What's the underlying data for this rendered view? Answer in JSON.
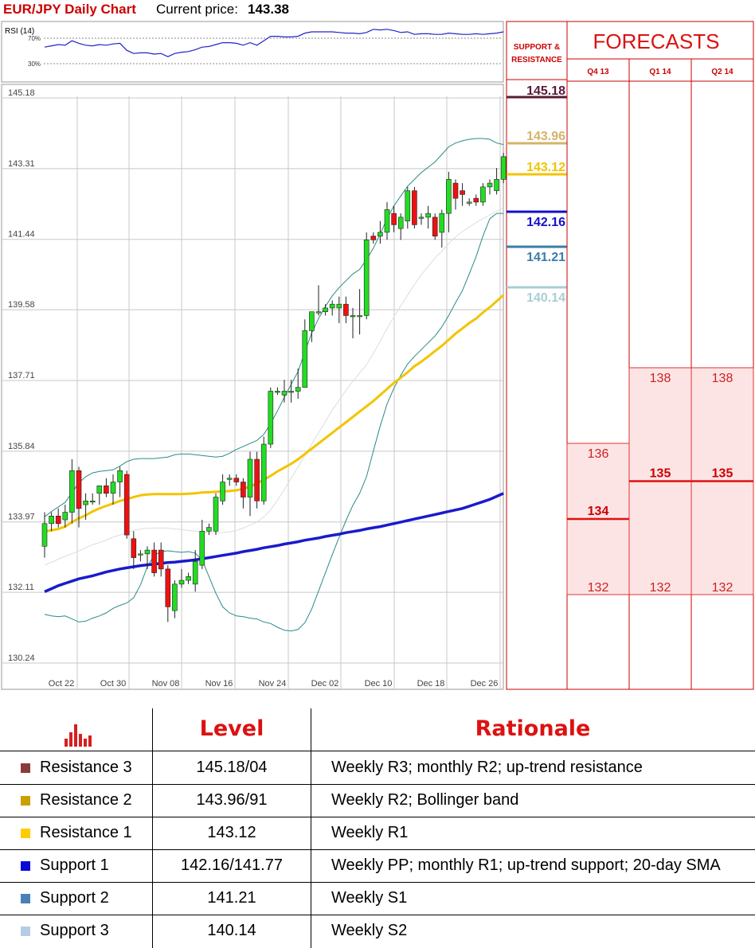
{
  "header": {
    "title": "EUR/JPY Daily Chart",
    "price_label": "Current price:",
    "price_value": "143.38"
  },
  "chart_data": {
    "type": "candlestick",
    "rsi_label": "RSI (14)",
    "rsi_levels": [
      "70%",
      "30%"
    ],
    "y_ticks": [
      "145.18",
      "143.31",
      "141.44",
      "139.58",
      "137.71",
      "135.84",
      "133.97",
      "132.11",
      "130.24"
    ],
    "ylim": [
      130.24,
      145.18
    ],
    "x_ticks": [
      "Oct 22",
      "Oct 30",
      "Nov 08",
      "Nov 16",
      "Nov 24",
      "Dec 02",
      "Dec 10",
      "Dec 18",
      "Dec 26"
    ],
    "grid": true,
    "candles": [
      {
        "o": 133.2,
        "h": 134.1,
        "l": 132.9,
        "c": 133.8
      },
      {
        "o": 133.8,
        "h": 134.1,
        "l": 133.6,
        "c": 134.0
      },
      {
        "o": 134.0,
        "h": 134.2,
        "l": 133.7,
        "c": 133.8
      },
      {
        "o": 133.9,
        "h": 134.3,
        "l": 133.7,
        "c": 134.1
      },
      {
        "o": 134.1,
        "h": 135.5,
        "l": 133.8,
        "c": 135.2
      },
      {
        "o": 135.2,
        "h": 135.3,
        "l": 133.7,
        "c": 134.2
      },
      {
        "o": 134.3,
        "h": 134.6,
        "l": 133.9,
        "c": 134.4
      },
      {
        "o": 134.4,
        "h": 134.6,
        "l": 134.3,
        "c": 134.4
      },
      {
        "o": 134.6,
        "h": 134.8,
        "l": 134.3,
        "c": 134.8
      },
      {
        "o": 134.8,
        "h": 135.0,
        "l": 134.5,
        "c": 134.6
      },
      {
        "o": 134.6,
        "h": 135.1,
        "l": 134.3,
        "c": 134.9
      },
      {
        "o": 134.9,
        "h": 135.3,
        "l": 134.5,
        "c": 135.2
      },
      {
        "o": 135.1,
        "h": 135.2,
        "l": 133.4,
        "c": 133.5
      },
      {
        "o": 133.4,
        "h": 133.6,
        "l": 132.6,
        "c": 132.9
      },
      {
        "o": 133.0,
        "h": 133.1,
        "l": 132.8,
        "c": 133.0
      },
      {
        "o": 133.0,
        "h": 133.2,
        "l": 132.6,
        "c": 133.1
      },
      {
        "o": 133.1,
        "h": 133.3,
        "l": 132.4,
        "c": 132.5
      },
      {
        "o": 133.1,
        "h": 133.3,
        "l": 132.4,
        "c": 132.6
      },
      {
        "o": 132.6,
        "h": 132.7,
        "l": 131.2,
        "c": 131.6
      },
      {
        "o": 131.5,
        "h": 132.3,
        "l": 131.3,
        "c": 132.2
      },
      {
        "o": 132.2,
        "h": 132.6,
        "l": 132.1,
        "c": 132.3
      },
      {
        "o": 132.3,
        "h": 132.5,
        "l": 132.2,
        "c": 132.4
      },
      {
        "o": 132.2,
        "h": 133.1,
        "l": 132.0,
        "c": 132.8
      },
      {
        "o": 132.7,
        "h": 133.9,
        "l": 132.6,
        "c": 133.6
      },
      {
        "o": 133.6,
        "h": 133.8,
        "l": 133.5,
        "c": 133.7
      },
      {
        "o": 133.6,
        "h": 134.6,
        "l": 133.5,
        "c": 134.5
      },
      {
        "o": 134.4,
        "h": 135.1,
        "l": 134.3,
        "c": 134.9
      },
      {
        "o": 135.0,
        "h": 135.1,
        "l": 134.8,
        "c": 135.0
      },
      {
        "o": 135.0,
        "h": 135.1,
        "l": 134.8,
        "c": 134.9
      },
      {
        "o": 134.9,
        "h": 135.0,
        "l": 134.2,
        "c": 134.5
      },
      {
        "o": 134.5,
        "h": 135.7,
        "l": 134.0,
        "c": 135.5
      },
      {
        "o": 135.5,
        "h": 135.7,
        "l": 134.2,
        "c": 134.4
      },
      {
        "o": 134.4,
        "h": 136.1,
        "l": 134.3,
        "c": 135.9
      },
      {
        "o": 135.9,
        "h": 137.4,
        "l": 135.8,
        "c": 137.3
      },
      {
        "o": 137.3,
        "h": 137.4,
        "l": 137.2,
        "c": 137.3
      },
      {
        "o": 137.2,
        "h": 137.6,
        "l": 137.0,
        "c": 137.3
      },
      {
        "o": 137.3,
        "h": 137.6,
        "l": 137.0,
        "c": 137.3
      },
      {
        "o": 137.3,
        "h": 137.9,
        "l": 137.1,
        "c": 137.4
      },
      {
        "o": 137.4,
        "h": 139.2,
        "l": 137.4,
        "c": 138.9
      },
      {
        "o": 138.9,
        "h": 139.4,
        "l": 138.6,
        "c": 139.4
      },
      {
        "o": 139.4,
        "h": 140.1,
        "l": 139.3,
        "c": 139.4
      },
      {
        "o": 139.4,
        "h": 139.6,
        "l": 139.3,
        "c": 139.5
      },
      {
        "o": 139.5,
        "h": 139.7,
        "l": 139.3,
        "c": 139.6
      },
      {
        "o": 139.5,
        "h": 139.8,
        "l": 139.1,
        "c": 139.6
      },
      {
        "o": 139.6,
        "h": 139.8,
        "l": 139.1,
        "c": 139.3
      },
      {
        "o": 139.3,
        "h": 139.5,
        "l": 138.7,
        "c": 139.3
      },
      {
        "o": 139.3,
        "h": 140.0,
        "l": 138.8,
        "c": 139.3
      },
      {
        "o": 139.3,
        "h": 141.5,
        "l": 139.2,
        "c": 141.3
      },
      {
        "o": 141.4,
        "h": 141.5,
        "l": 141.2,
        "c": 141.3
      },
      {
        "o": 141.4,
        "h": 141.8,
        "l": 141.2,
        "c": 141.5
      },
      {
        "o": 141.5,
        "h": 142.3,
        "l": 141.3,
        "c": 142.1
      },
      {
        "o": 142.0,
        "h": 142.2,
        "l": 141.5,
        "c": 141.7
      },
      {
        "o": 141.6,
        "h": 142.0,
        "l": 141.3,
        "c": 141.9
      },
      {
        "o": 141.8,
        "h": 142.7,
        "l": 141.6,
        "c": 142.6
      },
      {
        "o": 142.6,
        "h": 142.7,
        "l": 141.6,
        "c": 141.7
      },
      {
        "o": 141.9,
        "h": 142.0,
        "l": 141.7,
        "c": 141.9
      },
      {
        "o": 141.9,
        "h": 142.2,
        "l": 141.6,
        "c": 142.0
      },
      {
        "o": 141.9,
        "h": 142.0,
        "l": 141.3,
        "c": 141.4
      },
      {
        "o": 141.5,
        "h": 142.1,
        "l": 141.1,
        "c": 142.0
      },
      {
        "o": 142.0,
        "h": 143.1,
        "l": 141.5,
        "c": 142.9
      },
      {
        "o": 142.8,
        "h": 142.9,
        "l": 142.1,
        "c": 142.4
      },
      {
        "o": 142.6,
        "h": 142.8,
        "l": 142.2,
        "c": 142.5
      },
      {
        "o": 142.3,
        "h": 142.4,
        "l": 142.2,
        "c": 142.3
      },
      {
        "o": 142.4,
        "h": 142.5,
        "l": 142.2,
        "c": 142.3
      },
      {
        "o": 142.3,
        "h": 142.8,
        "l": 142.2,
        "c": 142.7
      },
      {
        "o": 142.7,
        "h": 142.9,
        "l": 142.5,
        "c": 142.8
      },
      {
        "o": 142.6,
        "h": 143.2,
        "l": 142.5,
        "c": 142.9
      },
      {
        "o": 142.9,
        "h": 143.6,
        "l": 142.8,
        "c": 143.5
      }
    ],
    "sma100": [
      132.0,
      132.08,
      132.16,
      132.22,
      132.28,
      132.34,
      132.38,
      132.42,
      132.47,
      132.52,
      132.56,
      132.6,
      132.63,
      132.66,
      132.69,
      132.71,
      132.73,
      132.75,
      132.77,
      132.78,
      132.8,
      132.82,
      132.84,
      132.87,
      132.9,
      132.93,
      132.96,
      132.99,
      133.02,
      133.06,
      133.09,
      133.12,
      133.16,
      133.19,
      133.22,
      133.26,
      133.29,
      133.32,
      133.36,
      133.39,
      133.42,
      133.46,
      133.49,
      133.52,
      133.56,
      133.59,
      133.62,
      133.66,
      133.69,
      133.72,
      133.76,
      133.8,
      133.84,
      133.88,
      133.92,
      133.96,
      134.0,
      134.04,
      134.08,
      134.12,
      134.16,
      134.2,
      134.26,
      134.32,
      134.38,
      134.44,
      134.52,
      134.6
    ],
    "sma50": [
      133.6,
      133.62,
      133.66,
      133.72,
      133.84,
      133.94,
      134.02,
      134.12,
      134.2,
      134.27,
      134.33,
      134.4,
      134.45,
      134.5,
      134.55,
      134.57,
      134.58,
      134.58,
      134.58,
      134.58,
      134.58,
      134.59,
      134.6,
      134.62,
      134.63,
      134.64,
      134.65,
      134.66,
      134.68,
      134.72,
      134.78,
      134.86,
      134.96,
      135.06,
      135.18,
      135.28,
      135.38,
      135.5,
      135.64,
      135.78,
      135.92,
      136.06,
      136.2,
      136.34,
      136.48,
      136.62,
      136.76,
      136.9,
      137.04,
      137.2,
      137.36,
      137.52,
      137.66,
      137.8,
      137.96,
      138.08,
      138.22,
      138.36,
      138.5,
      138.66,
      138.82,
      138.96,
      139.1,
      139.22,
      139.38,
      139.52,
      139.68,
      139.84
    ],
    "bb_upper": [
      133.98,
      134.12,
      134.24,
      134.36,
      134.62,
      134.88,
      135.04,
      135.14,
      135.18,
      135.2,
      135.22,
      135.32,
      135.44,
      135.5,
      135.52,
      135.52,
      135.52,
      135.54,
      135.56,
      135.62,
      135.64,
      135.64,
      135.62,
      135.6,
      135.58,
      135.56,
      135.58,
      135.66,
      135.76,
      135.84,
      135.92,
      136.0,
      136.16,
      136.44,
      136.78,
      137.14,
      137.48,
      137.82,
      138.34,
      138.84,
      139.22,
      139.54,
      139.82,
      140.04,
      140.22,
      140.4,
      140.52,
      140.78,
      141.08,
      141.46,
      141.86,
      142.2,
      142.46,
      142.72,
      142.9,
      143.08,
      143.22,
      143.36,
      143.56,
      143.76,
      143.86,
      143.92,
      143.96,
      143.98,
      143.98,
      143.96,
      143.86,
      143.82
    ],
    "bb_lower": [
      131.4,
      131.36,
      131.34,
      131.36,
      131.28,
      131.2,
      131.22,
      131.3,
      131.36,
      131.44,
      131.56,
      131.64,
      131.7,
      131.84,
      132.18,
      132.66,
      132.96,
      133.06,
      133.08,
      133.06,
      133.04,
      133.06,
      133.02,
      132.84,
      132.4,
      131.96,
      131.6,
      131.44,
      131.36,
      131.34,
      131.3,
      131.28,
      131.2,
      131.16,
      131.06,
      130.98,
      130.96,
      131.0,
      131.18,
      131.54,
      132.02,
      132.5,
      132.98,
      133.44,
      133.88,
      134.28,
      134.6,
      135.04,
      135.72,
      136.38,
      136.96,
      137.38,
      137.72,
      138.02,
      138.22,
      138.4,
      138.58,
      138.76,
      139.0,
      139.3,
      139.64,
      139.96,
      140.4,
      140.86,
      141.4,
      141.86,
      142.0,
      142.0
    ],
    "bb_mid": [
      132.7,
      132.78,
      132.86,
      132.94,
      133.0,
      133.08,
      133.16,
      133.24,
      133.3,
      133.36,
      133.44,
      133.5,
      133.56,
      133.62,
      133.66,
      133.68,
      133.68,
      133.68,
      133.68,
      133.66,
      133.64,
      133.62,
      133.6,
      133.58,
      133.56,
      133.56,
      133.56,
      133.58,
      133.62,
      133.68,
      133.76,
      133.84,
      133.98,
      134.16,
      134.42,
      134.7,
      135.0,
      135.3,
      135.6,
      135.9,
      136.2,
      136.5,
      136.8,
      137.06,
      137.32,
      137.56,
      137.78,
      138.0,
      138.3,
      138.62,
      138.96,
      139.26,
      139.56,
      139.84,
      140.12,
      140.38,
      140.6,
      140.82,
      141.0,
      141.2,
      141.38,
      141.52,
      141.64,
      141.76,
      141.86,
      141.96,
      142.06,
      142.16
    ],
    "rsi": [
      56,
      58,
      60,
      59,
      66,
      62,
      59,
      58,
      60,
      59,
      61,
      62,
      51,
      46,
      47,
      47,
      45,
      46,
      41,
      46,
      48,
      49,
      52,
      56,
      57,
      60,
      63,
      63,
      62,
      59,
      63,
      59,
      66,
      73,
      73,
      72,
      72,
      73,
      78,
      80,
      80,
      80,
      80,
      79,
      78,
      78,
      77,
      79,
      84,
      83,
      84,
      82,
      79,
      80,
      76,
      77,
      77,
      76,
      76,
      78,
      77,
      76,
      76,
      77,
      76,
      77,
      78,
      80
    ],
    "support_resistance_label": [
      "SUPPORT &",
      "RESISTANCE"
    ],
    "levels": [
      {
        "value": "145.18",
        "numeric": 145.18,
        "color": "#5b1a36"
      },
      {
        "value": "143.96",
        "numeric": 143.96,
        "color": "#d4b46a"
      },
      {
        "value": "143.12",
        "numeric": 143.12,
        "color": "#f2c400"
      },
      {
        "value": "142.16",
        "numeric": 142.16,
        "color": "#1111cc"
      },
      {
        "value": "141.21",
        "numeric": 141.21,
        "color": "#3a7ea6"
      },
      {
        "value": "140.14",
        "numeric": 140.14,
        "color": "#a8cfd4"
      }
    ],
    "forecasts": {
      "title": "FORECASTS",
      "columns": [
        "Q4 13",
        "Q1 14",
        "Q2 14"
      ],
      "values": [
        {
          "high": "136",
          "mid": "134",
          "low": "132",
          "high_n": 136,
          "mid_n": 134,
          "low_n": 132
        },
        {
          "high": "138",
          "mid": "135",
          "low": "132",
          "high_n": 138,
          "mid_n": 135,
          "low_n": 132
        },
        {
          "high": "138",
          "mid": "135",
          "low": "132",
          "high_n": 138,
          "mid_n": 135,
          "low_n": 132
        }
      ]
    }
  },
  "table": {
    "headers": {
      "level": "Level",
      "rationale": "Rationale"
    },
    "header_icon": "bar-chart-icon",
    "rows": [
      {
        "name": "Resistance 3",
        "level": "145.18/04",
        "rationale": "Weekly R3; monthly R2; up-trend resistance",
        "color": "#8b3a3a"
      },
      {
        "name": "Resistance 2",
        "level": "143.96/91",
        "rationale": "Weekly R2; Bollinger band",
        "color": "#c8a000"
      },
      {
        "name": "Resistance 1",
        "level": "143.12",
        "rationale": "Weekly R1",
        "color": "#ffcc00"
      },
      {
        "name": "Support 1",
        "level": "142.16/141.77",
        "rationale": "Weekly PP; monthly R1; up-trend support; 20-day SMA",
        "color": "#0a0ad6"
      },
      {
        "name": "Support 2",
        "level": "141.21",
        "rationale": "Weekly S1",
        "color": "#4a80b8"
      },
      {
        "name": "Support 3",
        "level": "140.14",
        "rationale": "Weekly S2",
        "color": "#b4cce8"
      }
    ]
  }
}
